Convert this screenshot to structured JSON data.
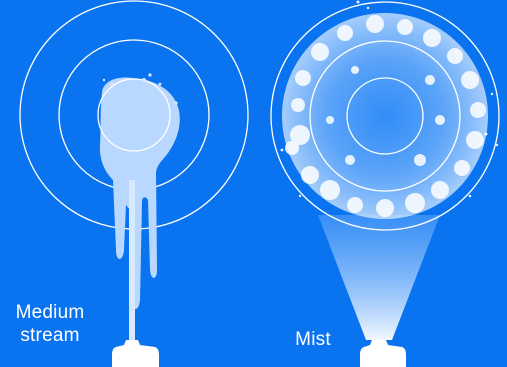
{
  "labels": {
    "medium_line1": "Medium",
    "medium_line2": "stream",
    "mist": "Mist"
  },
  "colors": {
    "background": "#0a73f0",
    "ring": "#ffffff",
    "stream": "#b9d8ff",
    "nozzle": "#ffffff"
  }
}
